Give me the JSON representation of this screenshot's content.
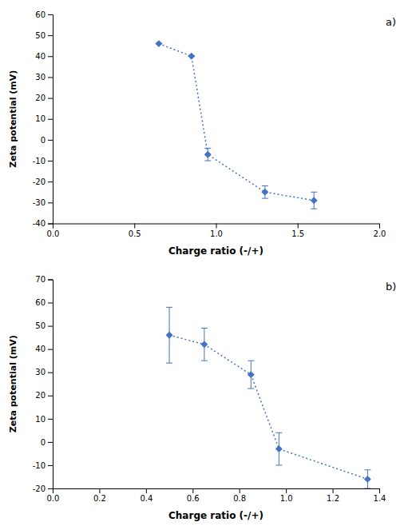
{
  "chart_data": [
    {
      "type": "line",
      "x": [
        0.65,
        0.85,
        0.95,
        1.3,
        1.6
      ],
      "values": [
        46,
        40,
        -7,
        -25,
        -29
      ],
      "yerr": [
        0,
        0,
        3,
        3,
        4
      ],
      "xlim": [
        0.0,
        2.0
      ],
      "ylim": [
        -40,
        60
      ],
      "xticks": [
        {
          "value": 0.0,
          "label": "0.0"
        },
        0.5,
        {
          "value": 1.0,
          "label": "1.0"
        },
        1.5,
        {
          "value": 2.0,
          "label": "2.0"
        }
      ],
      "yticks": [
        -40,
        -30,
        -20,
        -10,
        0,
        10,
        20,
        30,
        40,
        50,
        60
      ],
      "xlabel": "Charge ratio (-/+)",
      "ylabel": "Zeta potential (mV)",
      "annotation": "a)",
      "color": "#4472C4",
      "marker": "diamond",
      "line_style": "dotted",
      "grid": false
    },
    {
      "type": "line",
      "x": [
        0.5,
        0.65,
        0.85,
        0.97,
        1.35
      ],
      "values": [
        46,
        42,
        29,
        -3,
        -16
      ],
      "yerr": [
        12,
        7,
        6,
        7,
        4
      ],
      "xlim": [
        0.0,
        1.4
      ],
      "ylim": [
        -20,
        70
      ],
      "xticks": [
        {
          "value": 0.0,
          "label": "0.0"
        },
        0.2,
        0.4,
        0.6,
        0.8,
        {
          "value": 1.0,
          "label": "1.0"
        },
        1.2,
        1.4
      ],
      "yticks": [
        -20,
        -10,
        0,
        10,
        20,
        30,
        40,
        50,
        60,
        70
      ],
      "xlabel": "Charge ratio (-/+)",
      "ylabel": "Zeta potential (mV)",
      "annotation": "b)",
      "color": "#4472C4",
      "marker": "diamond",
      "line_style": "dotted",
      "grid": false
    }
  ]
}
